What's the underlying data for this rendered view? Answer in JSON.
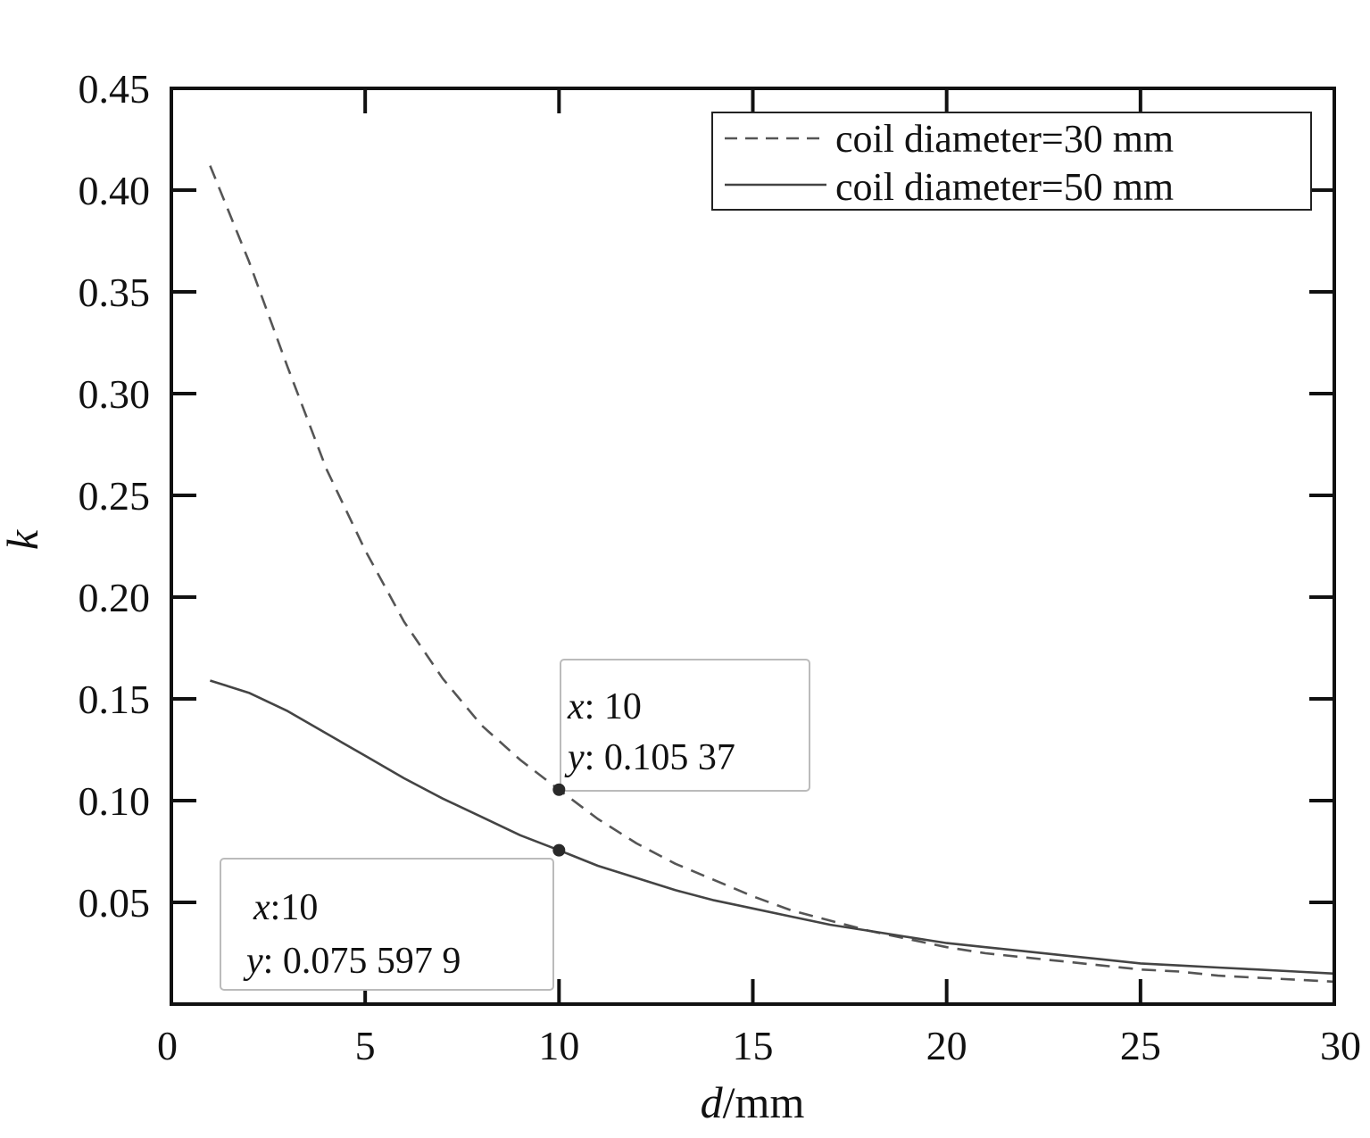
{
  "chart_data": {
    "type": "line",
    "title": "",
    "xlabel": {
      "var": "d",
      "unit": "/mm"
    },
    "ylabel": "k",
    "xlim": [
      0,
      30
    ],
    "ylim": [
      0.0,
      0.45
    ],
    "x_ticks": [
      0,
      5,
      10,
      15,
      20,
      25,
      30
    ],
    "x_tick_labels": [
      "0",
      "5",
      "10",
      "15",
      "20",
      "25",
      "30"
    ],
    "y_ticks": [
      0.05,
      0.1,
      0.15,
      0.2,
      0.25,
      0.3,
      0.35,
      0.4,
      0.45
    ],
    "y_tick_labels": [
      "0.05",
      "0.10",
      "0.15",
      "0.20",
      "0.25",
      "0.30",
      "0.35",
      "0.40",
      "0.45"
    ],
    "grid": false,
    "legend_position": "top-right",
    "series": [
      {
        "name": "coil diameter=30 mm",
        "style": "dashed",
        "color": "#555555",
        "x": [
          1,
          2,
          3,
          4,
          5,
          6,
          7,
          8,
          9,
          10,
          11,
          12,
          13,
          14,
          15,
          16,
          17,
          18,
          19,
          20,
          21,
          22,
          23,
          24,
          25,
          26,
          27,
          28,
          29,
          30
        ],
        "y": [
          0.412,
          0.365,
          0.313,
          0.263,
          0.223,
          0.188,
          0.16,
          0.137,
          0.12,
          0.10537,
          0.091,
          0.079,
          0.069,
          0.061,
          0.053,
          0.046,
          0.041,
          0.036,
          0.032,
          0.028,
          0.025,
          0.023,
          0.021,
          0.019,
          0.017,
          0.016,
          0.014,
          0.013,
          0.012,
          0.011
        ]
      },
      {
        "name": "coil diameter=50 mm",
        "style": "solid",
        "color": "#444444",
        "x": [
          1,
          2,
          3,
          4,
          5,
          6,
          7,
          8,
          9,
          10,
          11,
          12,
          13,
          14,
          15,
          16,
          17,
          18,
          19,
          20,
          21,
          22,
          23,
          24,
          25,
          26,
          27,
          28,
          29,
          30
        ],
        "y": [
          0.159,
          0.153,
          0.144,
          0.133,
          0.122,
          0.111,
          0.101,
          0.092,
          0.083,
          0.0755979,
          0.068,
          0.062,
          0.056,
          0.051,
          0.047,
          0.043,
          0.039,
          0.036,
          0.033,
          0.03,
          0.028,
          0.026,
          0.024,
          0.022,
          0.02,
          0.019,
          0.018,
          0.017,
          0.016,
          0.015
        ]
      }
    ],
    "annotations": [
      {
        "series": 0,
        "x": 10,
        "y": 0.10537,
        "x_prefix": "x",
        "x_text": ": 10",
        "y_prefix": "y",
        "y_text": ": 0.105 37",
        "box": "above-right"
      },
      {
        "series": 1,
        "x": 10,
        "y": 0.0755979,
        "x_prefix": "x",
        "x_text": ":10",
        "y_prefix": "y",
        "y_text": ": 0.075 597 9",
        "box": "below-left"
      }
    ]
  },
  "colors": {
    "axis": "#111111",
    "dashed_series": "#555555",
    "solid_series": "#444444",
    "marker": "#2a2a2a",
    "datatip_border": "#bbbbbb"
  }
}
